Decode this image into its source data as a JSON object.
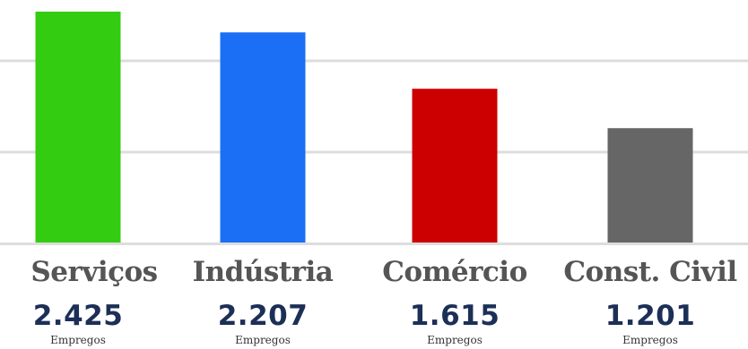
{
  "chart_data": {
    "type": "bar",
    "categories": [
      "Serviços",
      "Indústria",
      "Comércio",
      "Const. Civil"
    ],
    "values": [
      2425,
      2207,
      1615,
      1201
    ],
    "value_labels": [
      "2.425",
      "2.207",
      "1.615",
      "1.201"
    ],
    "unit_label": "Empregos",
    "colors": [
      "#33cc11",
      "#1a6ff5",
      "#cc0000",
      "#666666"
    ],
    "gridline_color": "#dddddd",
    "grid": true,
    "ylim": [
      0,
      2500
    ],
    "title": "",
    "xlabel": "",
    "ylabel": ""
  }
}
